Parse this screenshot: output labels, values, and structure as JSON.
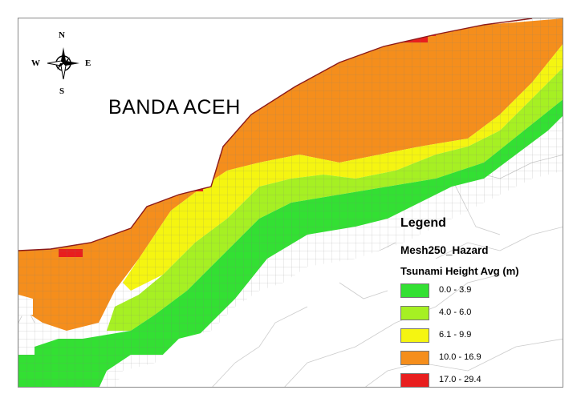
{
  "map": {
    "place_label": "BANDA ACEH",
    "compass": {
      "n": "N",
      "s": "S",
      "e": "E",
      "w": "W"
    }
  },
  "legend": {
    "title": "Legend",
    "layer": "Mesh250_Hazard",
    "field": "Tsunami Height Avg (m)",
    "classes": [
      {
        "label": "0.0 - 3.9",
        "color": "#33e033"
      },
      {
        "label": "4.0 - 6.0",
        "color": "#a6f023"
      },
      {
        "label": "6.1 - 9.9",
        "color": "#f5f511"
      },
      {
        "label": "10.0 - 16.9",
        "color": "#f58e1c"
      },
      {
        "label": "17.0 - 29.4",
        "color": "#e81e1e"
      }
    ]
  }
}
